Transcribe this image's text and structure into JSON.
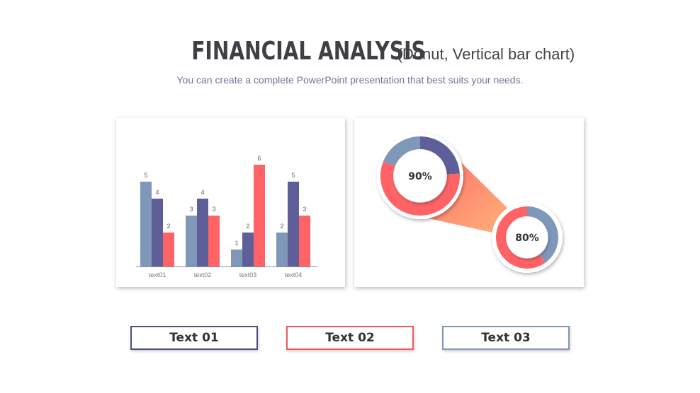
{
  "header": {
    "title": "FINANCIAL ANALYSIS",
    "title_suffix": "(Donut, Vertical bar chart)",
    "subtitle": "You can create a complete PowerPoint presentation that best suits your needs."
  },
  "colors": {
    "series1": "#7f97b9",
    "series2": "#5e5f99",
    "series3": "#ff6366",
    "funnel_start": "#ff6f6a",
    "funnel_end": "#ffb27a"
  },
  "chart_data": [
    {
      "type": "bar",
      "categories": [
        "text01",
        "text02",
        "text03",
        "text04"
      ],
      "series": [
        {
          "values": [
            5,
            3,
            1,
            2
          ]
        },
        {
          "values": [
            4,
            4,
            2,
            5
          ]
        },
        {
          "values": [
            2,
            3,
            6,
            3
          ]
        }
      ],
      "ylim": [
        0,
        6.5
      ],
      "grid": false,
      "legend": "none",
      "data_labels": true
    },
    {
      "type": "pie",
      "style": "donut",
      "label": "90%",
      "segments": [
        {
          "value": 65,
          "color": "#ff6366"
        },
        {
          "value": 20,
          "color": "#7f97b9"
        },
        {
          "value": 15,
          "color": "#5e5f99"
        }
      ]
    },
    {
      "type": "pie",
      "style": "donut",
      "label": "80%",
      "segments": [
        {
          "value": 70,
          "color": "#ff6366"
        },
        {
          "value": 30,
          "color": "#7f97b9"
        }
      ]
    }
  ],
  "labels": [
    {
      "text": "Text 01"
    },
    {
      "text": "Text 02"
    },
    {
      "text": "Text 03"
    }
  ]
}
